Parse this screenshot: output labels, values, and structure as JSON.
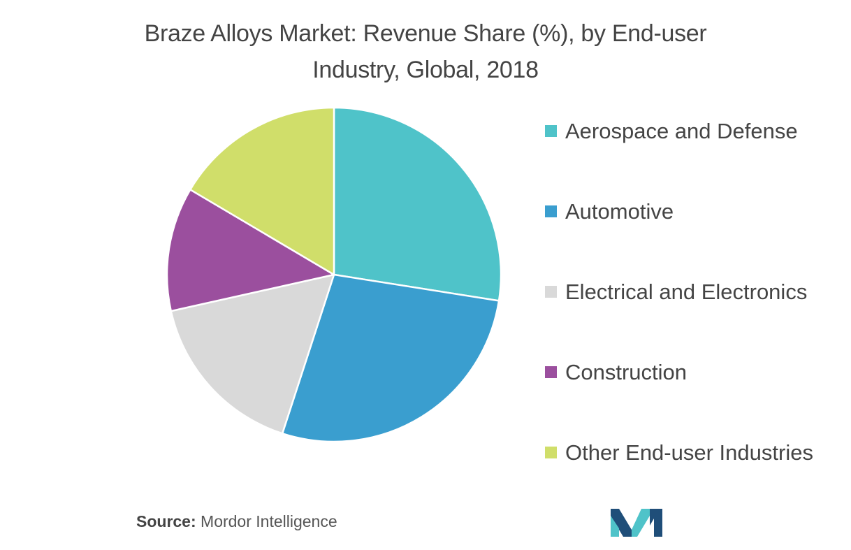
{
  "chart_data": {
    "type": "pie",
    "title_line1": "Braze Alloys Market: Revenue Share (%), by End-user",
    "title_line2": "Industry, Global, 2018",
    "slices": [
      {
        "label": "Aerospace and Defense",
        "value": 27.5,
        "color": "#4fc3c9"
      },
      {
        "label": "Automotive",
        "value": 27.5,
        "color": "#3a9ecf"
      },
      {
        "label": "Electrical and Electronics",
        "value": 16.5,
        "color": "#d9d9d9"
      },
      {
        "label": "Construction",
        "value": 12,
        "color": "#9b4f9e"
      },
      {
        "label": "Other End-user Industries",
        "value": 16.5,
        "color": "#d0de6a"
      }
    ],
    "legend_position": "right"
  },
  "source": {
    "label": "Source:",
    "text": "Mordor Intelligence"
  },
  "logo": {
    "icon": "mordor-intelligence-logo",
    "colors": [
      "#1f4e79",
      "#4fc3c9"
    ]
  }
}
